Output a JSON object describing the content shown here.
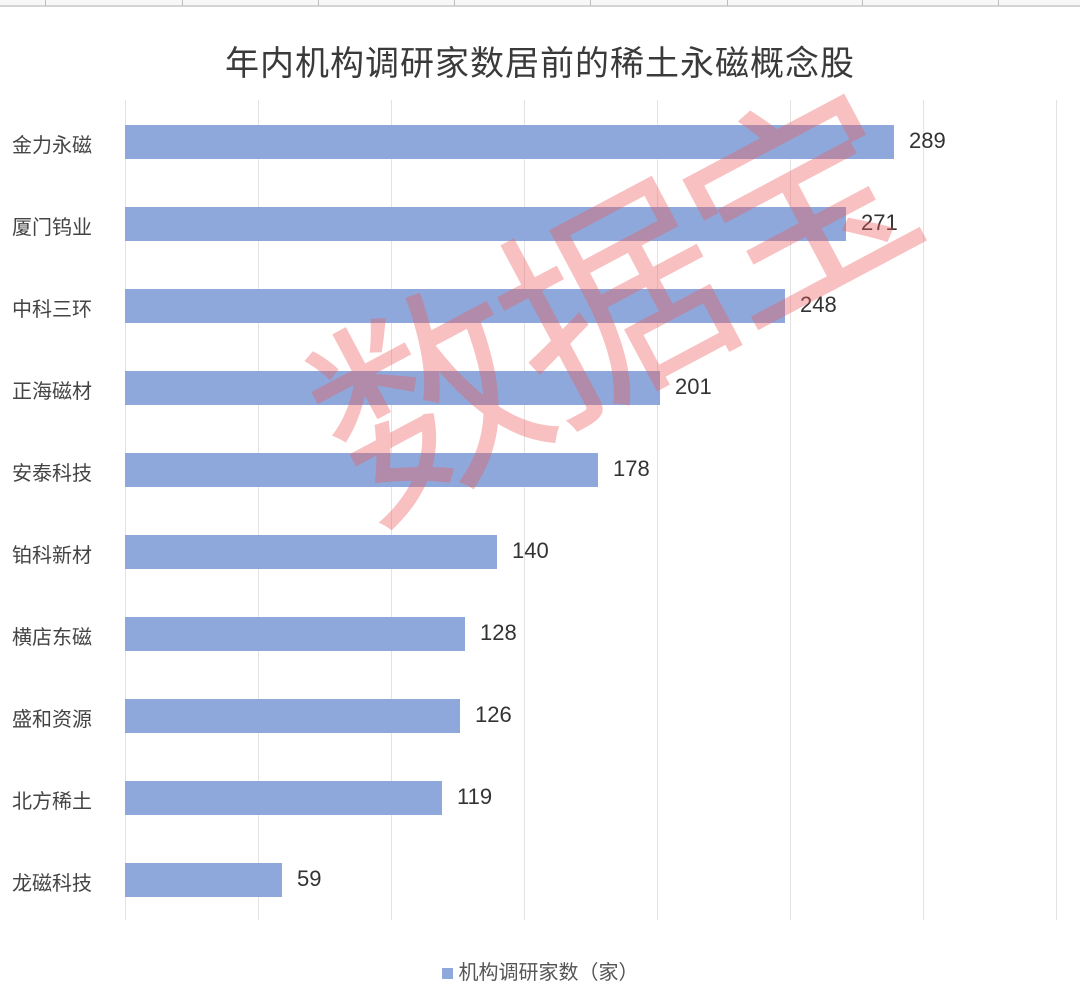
{
  "chart_data": {
    "type": "bar",
    "orientation": "horizontal",
    "title": "年内机构调研家数居前的稀土永磁概念股",
    "xlabel": "",
    "ylabel": "",
    "xlim": [
      0,
      350
    ],
    "grid": true,
    "grid_step": 50,
    "legend_position": "bottom",
    "categories": [
      "金力永磁",
      "厦门钨业",
      "中科三环",
      "正海磁材",
      "安泰科技",
      "铂科新材",
      "横店东磁",
      "盛和资源",
      "北方稀土",
      "龙磁科技"
    ],
    "series": [
      {
        "name": "机构调研家数（家）",
        "values": [
          289,
          271,
          248,
          201,
          178,
          140,
          128,
          126,
          119,
          59
        ],
        "color": "#8fa8db"
      }
    ],
    "data_labels": [
      "289",
      "271",
      "248",
      "201",
      "178",
      "140",
      "128",
      "126",
      "119",
      "59"
    ]
  },
  "title": "年内机构调研家数居前的稀土永磁概念股",
  "legend": {
    "label": "机构调研家数（家）"
  },
  "rows": [
    {
      "label": "金力永磁",
      "value": "289"
    },
    {
      "label": "厦门钨业",
      "value": "271"
    },
    {
      "label": "中科三环",
      "value": "248"
    },
    {
      "label": "正海磁材",
      "value": "201"
    },
    {
      "label": "安泰科技",
      "value": "178"
    },
    {
      "label": "铂科新材",
      "value": "140"
    },
    {
      "label": "横店东磁",
      "value": "128"
    },
    {
      "label": "盛和资源",
      "value": "126"
    },
    {
      "label": "北方稀土",
      "value": "119"
    },
    {
      "label": "龙磁科技",
      "value": "59"
    }
  ],
  "watermark": "数据宝",
  "colors": {
    "bar": "#8fa8db",
    "watermark": "#ec5a5a",
    "grid": "#e3e3e3"
  }
}
